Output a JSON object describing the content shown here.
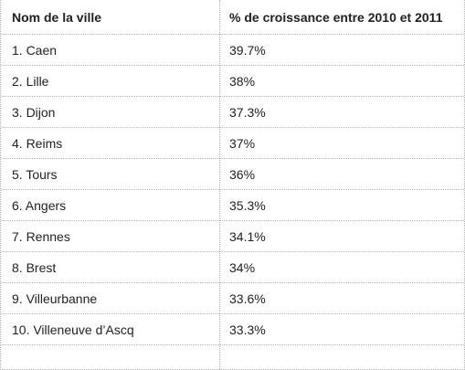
{
  "table": {
    "headers": {
      "city": "Nom de la ville",
      "growth": "% de croissance entre 2010 et 2011"
    },
    "rows": [
      {
        "city": "1. Caen",
        "growth": "39.7%"
      },
      {
        "city": "2. Lille",
        "growth": "38%"
      },
      {
        "city": "3. Dijon",
        "growth": "37.3%"
      },
      {
        "city": "4. Reims",
        "growth": "37%"
      },
      {
        "city": "5. Tours",
        "growth": "36%"
      },
      {
        "city": "6. Angers",
        "growth": "35.3%"
      },
      {
        "city": "7. Rennes",
        "growth": "34.1%"
      },
      {
        "city": "8. Brest",
        "growth": "34%"
      },
      {
        "city": "9. Villeurbanne",
        "growth": "33.6%"
      },
      {
        "city": "10. Villeneuve d’Ascq",
        "growth": "33.3%"
      }
    ]
  },
  "colors": {
    "text": "#222222",
    "border": "#b5b5b5",
    "background": "#ffffff"
  }
}
